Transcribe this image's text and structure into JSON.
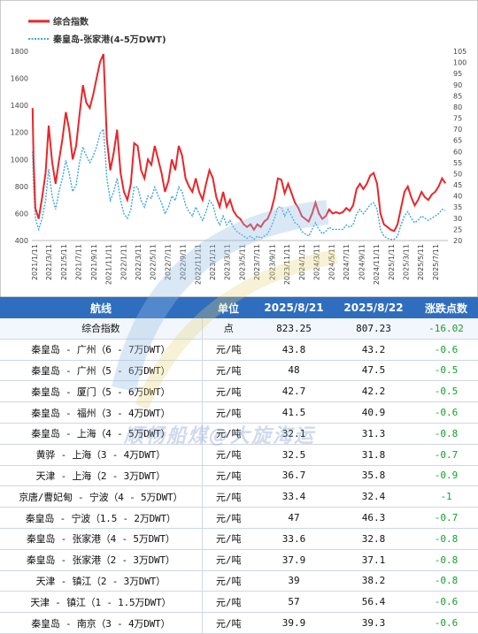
{
  "chart_data": {
    "type": "line",
    "title": "",
    "legend": "top-left",
    "series": [
      {
        "name": "综合指数",
        "axis": "left",
        "color": "#e8262a"
      },
      {
        "name": "秦皇岛-张家港(4-5万DWT)",
        "axis": "right",
        "color": "#3ea7e0"
      }
    ],
    "y_left": {
      "ylim": [
        400,
        1800
      ],
      "ticks": [
        "400",
        "600",
        "800",
        "1000",
        "1200",
        "1400",
        "1600",
        "1800"
      ]
    },
    "y_right": {
      "ylim": [
        20,
        105
      ],
      "ticks": [
        "20",
        "25",
        "30",
        "35",
        "40",
        "45",
        "50",
        "55",
        "60",
        "65",
        "70",
        "75",
        "80",
        "85",
        "90",
        "95",
        "100",
        "105"
      ]
    },
    "x_ticks": [
      "2021/1/11",
      "2021/3/11",
      "2021/5/11",
      "2021/7/11",
      "2021/9/11",
      "2021/11/11",
      "2022/1/11",
      "2022/3/11",
      "2022/5/11",
      "2022/7/11",
      "2022/9/11",
      "2022/11/11",
      "2023/1/11",
      "2023/3/11",
      "2023/5/11",
      "2023/7/11",
      "2023/9/11",
      "2023/11/11",
      "2024/1/11",
      "2024/3/11",
      "2024/5/11",
      "2024/7/11",
      "2024/9/11",
      "2024/11/11",
      "2025/1/11",
      "2025/3/11",
      "2025/5/11",
      "2025/7/11"
    ],
    "index_points": [
      [
        "2021-01-04",
        1380
      ],
      [
        "2021-01-08",
        1000
      ],
      [
        "2021-01-15",
        640
      ],
      [
        "2021-01-29",
        560
      ],
      [
        "2021-02-12",
        720
      ],
      [
        "2021-02-26",
        900
      ],
      [
        "2021-03-11",
        1250
      ],
      [
        "2021-03-25",
        980
      ],
      [
        "2021-04-08",
        820
      ],
      [
        "2021-04-22",
        990
      ],
      [
        "2021-05-06",
        1150
      ],
      [
        "2021-05-20",
        1350
      ],
      [
        "2021-06-03",
        1220
      ],
      [
        "2021-06-17",
        1000
      ],
      [
        "2021-07-01",
        1100
      ],
      [
        "2021-07-15",
        1330
      ],
      [
        "2021-07-29",
        1550
      ],
      [
        "2021-08-12",
        1420
      ],
      [
        "2021-08-26",
        1380
      ],
      [
        "2021-09-09",
        1480
      ],
      [
        "2021-09-23",
        1600
      ],
      [
        "2021-10-07",
        1720
      ],
      [
        "2021-10-21",
        1780
      ],
      [
        "2021-11-04",
        1150
      ],
      [
        "2021-11-18",
        920
      ],
      [
        "2021-12-02",
        1050
      ],
      [
        "2021-12-16",
        1220
      ],
      [
        "2021-12-30",
        900
      ],
      [
        "2022-01-13",
        760
      ],
      [
        "2022-01-27",
        700
      ],
      [
        "2022-02-10",
        820
      ],
      [
        "2022-02-24",
        1120
      ],
      [
        "2022-03-10",
        1100
      ],
      [
        "2022-03-24",
        920
      ],
      [
        "2022-04-07",
        860
      ],
      [
        "2022-04-21",
        1000
      ],
      [
        "2022-05-05",
        960
      ],
      [
        "2022-05-19",
        1100
      ],
      [
        "2022-06-02",
        1000
      ],
      [
        "2022-06-16",
        900
      ],
      [
        "2022-06-30",
        760
      ],
      [
        "2022-07-14",
        840
      ],
      [
        "2022-07-28",
        1000
      ],
      [
        "2022-08-11",
        920
      ],
      [
        "2022-08-25",
        1100
      ],
      [
        "2022-09-08",
        1030
      ],
      [
        "2022-09-22",
        860
      ],
      [
        "2022-10-06",
        800
      ],
      [
        "2022-10-20",
        760
      ],
      [
        "2022-11-03",
        860
      ],
      [
        "2022-11-17",
        760
      ],
      [
        "2022-12-01",
        700
      ],
      [
        "2022-12-15",
        820
      ],
      [
        "2022-12-29",
        920
      ],
      [
        "2023-01-12",
        860
      ],
      [
        "2023-01-26",
        720
      ],
      [
        "2023-02-09",
        650
      ],
      [
        "2023-02-23",
        760
      ],
      [
        "2023-03-09",
        650
      ],
      [
        "2023-03-23",
        700
      ],
      [
        "2023-04-06",
        620
      ],
      [
        "2023-04-20",
        580
      ],
      [
        "2023-05-04",
        560
      ],
      [
        "2023-05-18",
        520
      ],
      [
        "2023-06-01",
        500
      ],
      [
        "2023-06-15",
        520
      ],
      [
        "2023-06-29",
        480
      ],
      [
        "2023-07-13",
        520
      ],
      [
        "2023-07-27",
        500
      ],
      [
        "2023-08-10",
        540
      ],
      [
        "2023-08-24",
        560
      ],
      [
        "2023-09-07",
        620
      ],
      [
        "2023-09-21",
        720
      ],
      [
        "2023-10-05",
        860
      ],
      [
        "2023-10-19",
        850
      ],
      [
        "2023-11-02",
        750
      ],
      [
        "2023-11-16",
        820
      ],
      [
        "2023-11-30",
        750
      ],
      [
        "2023-12-14",
        680
      ],
      [
        "2023-12-28",
        640
      ],
      [
        "2024-01-11",
        580
      ],
      [
        "2024-01-25",
        560
      ],
      [
        "2024-02-08",
        540
      ],
      [
        "2024-02-22",
        600
      ],
      [
        "2024-03-07",
        680
      ],
      [
        "2024-03-21",
        600
      ],
      [
        "2024-04-04",
        560
      ],
      [
        "2024-04-18",
        580
      ],
      [
        "2024-05-02",
        630
      ],
      [
        "2024-05-16",
        600
      ],
      [
        "2024-05-30",
        610
      ],
      [
        "2024-06-13",
        600
      ],
      [
        "2024-06-27",
        610
      ],
      [
        "2024-07-11",
        640
      ],
      [
        "2024-07-25",
        620
      ],
      [
        "2024-08-08",
        660
      ],
      [
        "2024-08-22",
        780
      ],
      [
        "2024-09-05",
        820
      ],
      [
        "2024-09-19",
        780
      ],
      [
        "2024-10-03",
        820
      ],
      [
        "2024-10-17",
        880
      ],
      [
        "2024-10-31",
        900
      ],
      [
        "2024-11-14",
        820
      ],
      [
        "2024-11-28",
        600
      ],
      [
        "2024-12-12",
        520
      ],
      [
        "2024-12-26",
        500
      ],
      [
        "2025-01-09",
        480
      ],
      [
        "2025-01-23",
        470
      ],
      [
        "2025-02-06",
        520
      ],
      [
        "2025-02-20",
        640
      ],
      [
        "2025-03-06",
        760
      ],
      [
        "2025-03-20",
        800
      ],
      [
        "2025-04-03",
        720
      ],
      [
        "2025-04-17",
        660
      ],
      [
        "2025-05-01",
        700
      ],
      [
        "2025-05-15",
        760
      ],
      [
        "2025-05-29",
        720
      ],
      [
        "2025-06-12",
        700
      ],
      [
        "2025-06-26",
        740
      ],
      [
        "2025-07-10",
        760
      ],
      [
        "2025-07-24",
        800
      ],
      [
        "2025-08-07",
        860
      ],
      [
        "2025-08-21",
        823
      ]
    ],
    "route_points": [
      [
        "2021-01-04",
        60
      ],
      [
        "2021-01-08",
        45
      ],
      [
        "2021-01-15",
        30
      ],
      [
        "2021-01-29",
        25
      ],
      [
        "2021-02-12",
        30
      ],
      [
        "2021-02-26",
        38
      ],
      [
        "2021-03-11",
        52
      ],
      [
        "2021-03-25",
        40
      ],
      [
        "2021-04-08",
        34
      ],
      [
        "2021-04-22",
        42
      ],
      [
        "2021-05-06",
        48
      ],
      [
        "2021-05-20",
        56
      ],
      [
        "2021-06-03",
        50
      ],
      [
        "2021-06-17",
        42
      ],
      [
        "2021-07-01",
        45
      ],
      [
        "2021-07-15",
        55
      ],
      [
        "2021-07-29",
        62
      ],
      [
        "2021-08-12",
        58
      ],
      [
        "2021-08-26",
        55
      ],
      [
        "2021-09-09",
        58
      ],
      [
        "2021-09-23",
        62
      ],
      [
        "2021-10-07",
        68
      ],
      [
        "2021-10-21",
        70
      ],
      [
        "2021-11-04",
        48
      ],
      [
        "2021-11-18",
        38
      ],
      [
        "2021-12-02",
        42
      ],
      [
        "2021-12-16",
        48
      ],
      [
        "2021-12-30",
        38
      ],
      [
        "2022-01-13",
        32
      ],
      [
        "2022-01-27",
        30
      ],
      [
        "2022-02-10",
        34
      ],
      [
        "2022-02-24",
        44
      ],
      [
        "2022-03-10",
        44
      ],
      [
        "2022-03-24",
        38
      ],
      [
        "2022-04-07",
        35
      ],
      [
        "2022-04-21",
        40
      ],
      [
        "2022-05-05",
        39
      ],
      [
        "2022-05-19",
        44
      ],
      [
        "2022-06-02",
        40
      ],
      [
        "2022-06-16",
        37
      ],
      [
        "2022-06-30",
        32
      ],
      [
        "2022-07-14",
        35
      ],
      [
        "2022-07-28",
        40
      ],
      [
        "2022-08-11",
        38
      ],
      [
        "2022-08-25",
        44
      ],
      [
        "2022-09-08",
        42
      ],
      [
        "2022-09-22",
        36
      ],
      [
        "2022-10-06",
        33
      ],
      [
        "2022-10-20",
        31
      ],
      [
        "2022-11-03",
        35
      ],
      [
        "2022-11-17",
        32
      ],
      [
        "2022-12-01",
        29
      ],
      [
        "2022-12-15",
        33
      ],
      [
        "2022-12-29",
        38
      ],
      [
        "2023-01-12",
        36
      ],
      [
        "2023-01-26",
        30
      ],
      [
        "2023-02-09",
        27
      ],
      [
        "2023-02-23",
        31
      ],
      [
        "2023-03-09",
        27
      ],
      [
        "2023-03-23",
        29
      ],
      [
        "2023-04-06",
        26
      ],
      [
        "2023-04-20",
        24
      ],
      [
        "2023-05-04",
        23
      ],
      [
        "2023-05-18",
        22
      ],
      [
        "2023-06-01",
        21
      ],
      [
        "2023-06-15",
        22
      ],
      [
        "2023-06-29",
        20.5
      ],
      [
        "2023-07-13",
        22
      ],
      [
        "2023-07-27",
        21
      ],
      [
        "2023-08-10",
        22
      ],
      [
        "2023-08-24",
        23
      ],
      [
        "2023-09-07",
        26
      ],
      [
        "2023-09-21",
        30
      ],
      [
        "2023-10-05",
        35
      ],
      [
        "2023-10-19",
        35
      ],
      [
        "2023-11-02",
        31
      ],
      [
        "2023-11-16",
        34
      ],
      [
        "2023-11-30",
        31
      ],
      [
        "2023-12-14",
        28
      ],
      [
        "2023-12-28",
        27
      ],
      [
        "2024-01-11",
        24
      ],
      [
        "2024-01-25",
        23
      ],
      [
        "2024-02-08",
        22
      ],
      [
        "2024-02-22",
        25
      ],
      [
        "2024-03-07",
        28
      ],
      [
        "2024-03-21",
        25
      ],
      [
        "2024-04-04",
        23
      ],
      [
        "2024-04-18",
        24
      ],
      [
        "2024-05-02",
        26
      ],
      [
        "2024-05-16",
        25
      ],
      [
        "2024-05-30",
        25
      ],
      [
        "2024-06-13",
        25
      ],
      [
        "2024-06-27",
        25
      ],
      [
        "2024-07-11",
        27
      ],
      [
        "2024-07-25",
        26
      ],
      [
        "2024-08-08",
        27
      ],
      [
        "2024-08-22",
        32
      ],
      [
        "2024-09-05",
        34
      ],
      [
        "2024-09-19",
        32
      ],
      [
        "2024-10-03",
        34
      ],
      [
        "2024-10-17",
        36
      ],
      [
        "2024-10-31",
        37
      ],
      [
        "2024-11-14",
        34
      ],
      [
        "2024-11-28",
        25
      ],
      [
        "2024-12-12",
        22
      ],
      [
        "2024-12-26",
        21
      ],
      [
        "2025-01-09",
        20.5
      ],
      [
        "2025-01-23",
        20.5
      ],
      [
        "2025-02-06",
        22
      ],
      [
        "2025-02-20",
        27
      ],
      [
        "2025-03-06",
        31
      ],
      [
        "2025-03-20",
        33
      ],
      [
        "2025-04-03",
        30
      ],
      [
        "2025-04-17",
        28
      ],
      [
        "2025-05-01",
        29
      ],
      [
        "2025-05-15",
        31
      ],
      [
        "2025-05-29",
        30
      ],
      [
        "2025-06-12",
        29
      ],
      [
        "2025-06-26",
        30
      ],
      [
        "2025-07-10",
        31
      ],
      [
        "2025-07-24",
        32
      ],
      [
        "2025-08-07",
        34
      ],
      [
        "2025-08-21",
        33.6
      ]
    ]
  },
  "table": {
    "headers": [
      "航线",
      "单位",
      "2025/8/21",
      "2025/8/22",
      "涨跌点数"
    ],
    "rows": [
      {
        "route": "综合指数",
        "unit": "点",
        "v1": "823.25",
        "v2": "807.23",
        "chg": "-16.02"
      },
      {
        "route": "秦皇岛 - 广州（6 - 7万DWT）",
        "unit": "元/吨",
        "v1": "43.8",
        "v2": "43.2",
        "chg": "-0.6"
      },
      {
        "route": "秦皇岛 - 广州（5 - 6万DWT）",
        "unit": "元/吨",
        "v1": "48",
        "v2": "47.5",
        "chg": "-0.5"
      },
      {
        "route": "秦皇岛 - 厦门（5 - 6万DWT）",
        "unit": "元/吨",
        "v1": "42.7",
        "v2": "42.2",
        "chg": "-0.5"
      },
      {
        "route": "秦皇岛 - 福州（3 - 4万DWT）",
        "unit": "元/吨",
        "v1": "41.5",
        "v2": "40.9",
        "chg": "-0.6"
      },
      {
        "route": "秦皇岛 - 上海（4 - 5万DWT）",
        "unit": "元/吨",
        "v1": "32.1",
        "v2": "31.3",
        "chg": "-0.8"
      },
      {
        "route": "黄骅 - 上海（3 - 4万DWT）",
        "unit": "元/吨",
        "v1": "32.5",
        "v2": "31.8",
        "chg": "-0.7"
      },
      {
        "route": "天津 - 上海（2 - 3万DWT）",
        "unit": "元/吨",
        "v1": "36.7",
        "v2": "35.8",
        "chg": "-0.9"
      },
      {
        "route": "京唐/曹妃甸 - 宁波（4 - 5万DWT）",
        "unit": "元/吨",
        "v1": "33.4",
        "v2": "32.4",
        "chg": "-1"
      },
      {
        "route": "秦皇岛 - 宁波（1.5 - 2万DWT）",
        "unit": "元/吨",
        "v1": "47",
        "v2": "46.3",
        "chg": "-0.7"
      },
      {
        "route": "秦皇岛 - 张家港（4 - 5万DWT）",
        "unit": "元/吨",
        "v1": "33.6",
        "v2": "32.8",
        "chg": "-0.8"
      },
      {
        "route": "秦皇岛 - 张家港（2 - 3万DWT）",
        "unit": "元/吨",
        "v1": "37.9",
        "v2": "37.1",
        "chg": "-0.8"
      },
      {
        "route": "天津 - 镇江（2 - 3万DWT）",
        "unit": "元/吨",
        "v1": "39",
        "v2": "38.2",
        "chg": "-0.8"
      },
      {
        "route": "天津 - 镇江（1 - 1.5万DWT）",
        "unit": "元/吨",
        "v1": "57",
        "v2": "56.4",
        "chg": "-0.6"
      },
      {
        "route": "秦皇岛 - 南京（3 - 4万DWT）",
        "unit": "元/吨",
        "v1": "39.9",
        "v2": "39.3",
        "chg": "-0.6"
      }
    ]
  },
  "watermark": "顺畅船煤@大旋海运",
  "colors": {
    "header_bg": "#2f6ebf",
    "change_text": "#17a02c",
    "index_line": "#e8262a",
    "route_line": "#3ea7e0"
  }
}
